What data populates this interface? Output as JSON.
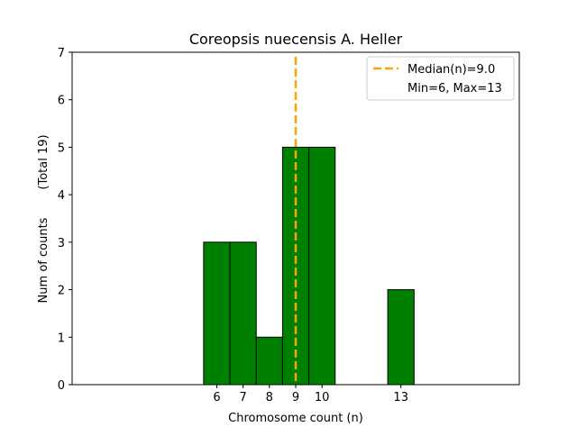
{
  "chart_data": {
    "type": "bar",
    "title": "Coreopsis nuecensis A. Heller",
    "xlabel": "Chromosome count (n)",
    "ylabel": "Num of counts",
    "ylabel_total": "(Total 19)",
    "xlim": [
      0.5,
      17.5
    ],
    "ylim": [
      0,
      7
    ],
    "x_ticks": [
      6,
      7,
      8,
      9,
      10,
      13
    ],
    "y_ticks": [
      0,
      1,
      2,
      3,
      4,
      5,
      6,
      7
    ],
    "bin_width": 1,
    "bars": [
      {
        "x": 6,
        "count": 3
      },
      {
        "x": 7,
        "count": 3
      },
      {
        "x": 8,
        "count": 1
      },
      {
        "x": 9,
        "count": 5
      },
      {
        "x": 10,
        "count": 5
      },
      {
        "x": 13,
        "count": 2
      }
    ],
    "median": 9.0,
    "bar_color": "#008000",
    "median_color": "#FFA500",
    "grid": false,
    "legend_placement": "top-right",
    "legend": {
      "median_label": "Median(n)=9.0",
      "minmax_label": "Min=6, Max=13"
    }
  }
}
